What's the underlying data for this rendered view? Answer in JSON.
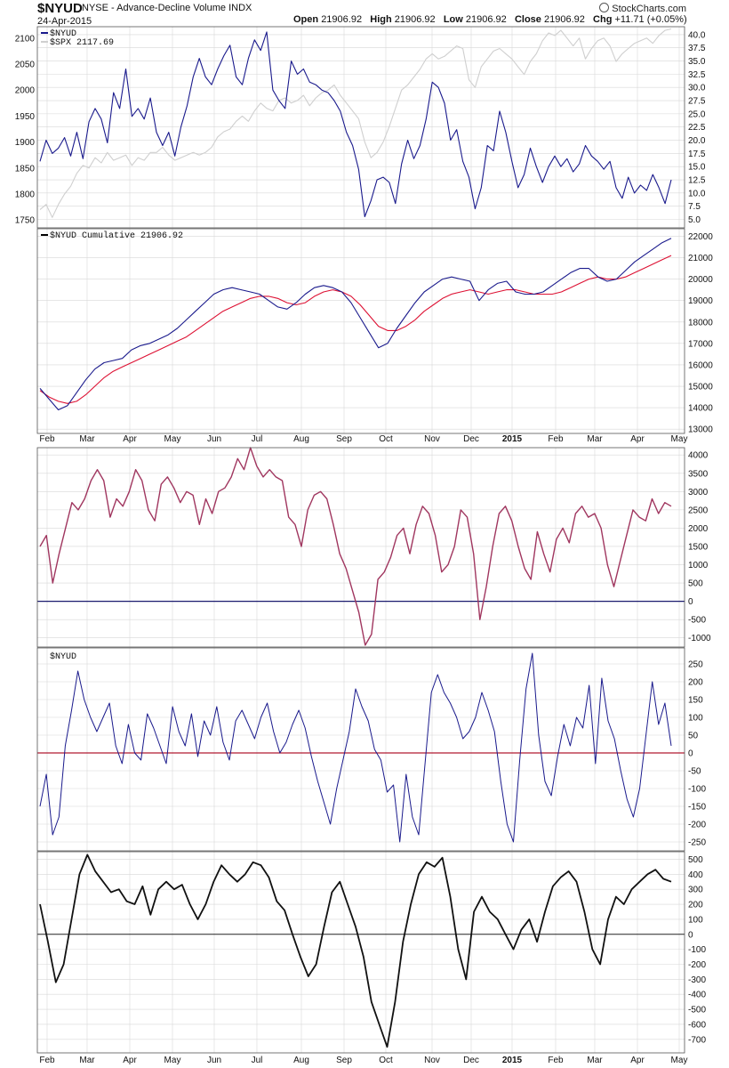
{
  "header": {
    "symbol": "$NYUD",
    "description": "NYSE - Advance-Decline Volume INDX",
    "date": "24-Apr-2015",
    "open_label": "Open",
    "open": "21906.92",
    "high_label": "High",
    "high": "21906.92",
    "low_label": "Low",
    "low": "21906.92",
    "close_label": "Close",
    "close": "21906.92",
    "chg_label": "Chg",
    "chg": "+11.71 (+0.05%)",
    "credit": "StockCharts.com"
  },
  "colors": {
    "nyud_line": "#1a1a8c",
    "spx_line": "#cfcfcf",
    "cumulative_line": "#1a1a8c",
    "cumulative_ma": "#dd1133",
    "oscillator_line": "#a0365f",
    "zero_line_dark": "#1a1a6e",
    "zero_line_red": "#b01a30",
    "momentum_line": "#111111"
  },
  "chart_data": [
    {
      "type": "line",
      "panel": "price",
      "legend": [
        "$NYUD",
        "$SPX 2117.69"
      ],
      "left_axis": {
        "ticks": [
          1750,
          1800,
          1850,
          1900,
          1950,
          2000,
          2050,
          2100
        ],
        "range": [
          1735,
          2122
        ]
      },
      "right_axis": {
        "ticks": [
          "5.0",
          "7.5",
          "10.0",
          "12.5",
          "15.0",
          "17.5",
          "20.0",
          "22.5",
          "25.0",
          "27.5",
          "30.0",
          "32.5",
          "35.0",
          "37.5",
          "40.0"
        ],
        "range": [
          3.4,
          41.5
        ]
      },
      "series": [
        {
          "name": "$NYUD",
          "axis": "right",
          "values": [
            16.0,
            20.0,
            17.5,
            18.5,
            20.5,
            17.0,
            21.5,
            16.5,
            23.5,
            26.0,
            24.0,
            19.5,
            29.0,
            26.0,
            33.5,
            24.5,
            26.0,
            24.0,
            28.0,
            21.5,
            19.0,
            21.5,
            17.0,
            22.5,
            26.5,
            32.0,
            35.5,
            32.0,
            30.5,
            33.5,
            36.0,
            38.0,
            32.0,
            30.5,
            35.5,
            39.0,
            37.0,
            40.5,
            29.5,
            27.5,
            26.0,
            35.0,
            32.5,
            33.5,
            31.0,
            30.5,
            29.5,
            29.0,
            27.5,
            25.5,
            21.5,
            19.0,
            14.5,
            5.5,
            8.5,
            12.5,
            13.0,
            12.0,
            8.0,
            15.5,
            20.0,
            16.5,
            19.0,
            24.0,
            31.0,
            30.0,
            27.0,
            20.0,
            22.0,
            16.0,
            13.0,
            7.0,
            11.0,
            19.0,
            18.0,
            25.5,
            21.5,
            16.0,
            11.0,
            13.5,
            18.5,
            15.0,
            12.0,
            15.0,
            17.0,
            15.0,
            16.5,
            14.0,
            15.5,
            19.0,
            17.0,
            16.0,
            14.5,
            16.0,
            11.0,
            9.0,
            13.0,
            10.0,
            11.5,
            10.5,
            13.5,
            11.0,
            8.0,
            12.5
          ]
        },
        {
          "name": "$SPX",
          "axis": "left",
          "values": [
            1770,
            1780,
            1755,
            1780,
            1800,
            1815,
            1840,
            1855,
            1850,
            1870,
            1860,
            1880,
            1865,
            1870,
            1875,
            1855,
            1870,
            1865,
            1880,
            1880,
            1890,
            1875,
            1865,
            1870,
            1875,
            1880,
            1875,
            1880,
            1890,
            1910,
            1920,
            1925,
            1940,
            1950,
            1940,
            1960,
            1975,
            1965,
            1960,
            1980,
            1985,
            1975,
            1980,
            1990,
            1970,
            1985,
            1995,
            2000,
            2010,
            1990,
            1975,
            1960,
            1945,
            1900,
            1870,
            1880,
            1900,
            1930,
            1965,
            2000,
            2010,
            2025,
            2040,
            2060,
            2070,
            2060,
            2065,
            2075,
            2085,
            2080,
            2020,
            2005,
            2045,
            2060,
            2075,
            2080,
            2070,
            2060,
            2045,
            2030,
            2055,
            2070,
            2095,
            2110,
            2105,
            2115,
            2100,
            2085,
            2100,
            2060,
            2080,
            2095,
            2100,
            2085,
            2055,
            2070,
            2080,
            2090,
            2095,
            2100,
            2090,
            2105,
            2115,
            2117.69
          ]
        }
      ]
    },
    {
      "type": "line",
      "panel": "cumulative",
      "legend": [
        "$NYUD Cumulative 21906.92"
      ],
      "right_axis": {
        "ticks": [
          13000,
          14000,
          15000,
          16000,
          17000,
          18000,
          19000,
          20000,
          21000,
          22000
        ],
        "range": [
          12800,
          22350
        ]
      },
      "series": [
        {
          "name": "$NYUD Cumulative",
          "values": [
            14900,
            14400,
            13900,
            14100,
            14700,
            15300,
            15800,
            16100,
            16200,
            16300,
            16700,
            16900,
            17000,
            17200,
            17400,
            17700,
            18100,
            18500,
            18900,
            19300,
            19500,
            19600,
            19500,
            19400,
            19300,
            19000,
            18700,
            18600,
            18900,
            19300,
            19600,
            19700,
            19600,
            19400,
            18900,
            18200,
            17500,
            16800,
            17000,
            17700,
            18300,
            18900,
            19400,
            19700,
            20000,
            20100,
            20000,
            19900,
            19000,
            19500,
            19800,
            19900,
            19400,
            19300,
            19300,
            19400,
            19700,
            20000,
            20300,
            20500,
            20500,
            20100,
            19900,
            20000,
            20400,
            20800,
            21100,
            21400,
            21700,
            21906.92
          ]
        },
        {
          "values": [
            14800,
            14500,
            14300,
            14200,
            14300,
            14600,
            15000,
            15400,
            15700,
            15900,
            16100,
            16300,
            16500,
            16700,
            16900,
            17100,
            17300,
            17600,
            17900,
            18200,
            18500,
            18700,
            18900,
            19100,
            19200,
            19200,
            19100,
            18900,
            18800,
            18900,
            19200,
            19400,
            19500,
            19400,
            19200,
            18800,
            18300,
            17800,
            17600,
            17600,
            17800,
            18100,
            18500,
            18800,
            19100,
            19300,
            19400,
            19500,
            19400,
            19300,
            19400,
            19500,
            19500,
            19400,
            19300,
            19300,
            19300,
            19400,
            19600,
            19800,
            20000,
            20100,
            20000,
            20000,
            20100,
            20300,
            20500,
            20700,
            20900,
            21100
          ]
        }
      ]
    },
    {
      "type": "line",
      "panel": "oscillator",
      "right_axis": {
        "ticks": [
          -1000,
          -500,
          0,
          500,
          1000,
          1500,
          2000,
          2500,
          3000,
          3500,
          4000
        ],
        "range": [
          -1250,
          4200
        ]
      },
      "series": [
        {
          "values": [
            1500,
            1800,
            500,
            1300,
            2000,
            2700,
            2500,
            2800,
            3300,
            3600,
            3300,
            2300,
            2800,
            2600,
            3000,
            3600,
            3300,
            2500,
            2200,
            3200,
            3400,
            3100,
            2700,
            3000,
            2900,
            2100,
            2800,
            2400,
            3000,
            3100,
            3400,
            3900,
            3600,
            4200,
            3700,
            3400,
            3600,
            3400,
            3300,
            2300,
            2100,
            1500,
            2500,
            2900,
            3000,
            2800,
            2100,
            1300,
            900,
            300,
            -300,
            -1200,
            -900,
            600,
            800,
            1200,
            1800,
            2000,
            1300,
            2100,
            2600,
            2400,
            1800,
            800,
            1000,
            1500,
            2500,
            2300,
            1300,
            -500,
            400,
            1500,
            2400,
            2600,
            2200,
            1500,
            900,
            600,
            1900,
            1300,
            800,
            1700,
            2000,
            1600,
            2400,
            2600,
            2300,
            2400,
            2000,
            1000,
            400,
            1100,
            1800,
            2500,
            2300,
            2200,
            2800,
            2400,
            2700,
            2600
          ]
        }
      ]
    },
    {
      "type": "line",
      "panel": "nyud",
      "legend": [
        "$NYUD"
      ],
      "right_axis": {
        "ticks": [
          -250,
          -200,
          -150,
          -100,
          -50,
          0,
          50,
          100,
          150,
          200,
          250
        ],
        "range": [
          -275,
          295
        ]
      },
      "series": [
        {
          "name": "$NYUD",
          "values": [
            -150,
            -60,
            -230,
            -180,
            20,
            120,
            230,
            150,
            100,
            60,
            100,
            140,
            20,
            -30,
            80,
            0,
            -20,
            110,
            70,
            20,
            -30,
            130,
            60,
            20,
            110,
            -10,
            90,
            50,
            130,
            30,
            -20,
            90,
            120,
            80,
            40,
            100,
            140,
            60,
            0,
            30,
            80,
            120,
            70,
            -10,
            -80,
            -140,
            -200,
            -100,
            -20,
            60,
            180,
            130,
            90,
            10,
            -20,
            -110,
            -90,
            -250,
            -60,
            -180,
            -230,
            -30,
            170,
            220,
            170,
            140,
            100,
            40,
            60,
            100,
            170,
            120,
            60,
            -80,
            -200,
            -250,
            -20,
            180,
            280,
            50,
            -80,
            -120,
            -10,
            80,
            20,
            100,
            70,
            190,
            -30,
            210,
            90,
            40,
            -50,
            -130,
            -180,
            -100,
            50,
            200,
            80,
            140,
            20
          ]
        }
      ]
    },
    {
      "type": "line",
      "panel": "momentum",
      "right_axis": {
        "ticks": [
          -700,
          -600,
          -500,
          -400,
          -300,
          -200,
          -100,
          0,
          100,
          200,
          300,
          400,
          500
        ],
        "range": [
          -790,
          550
        ]
      },
      "series": [
        {
          "values": [
            200,
            -50,
            -320,
            -200,
            100,
            400,
            530,
            420,
            350,
            280,
            300,
            220,
            200,
            320,
            130,
            300,
            350,
            300,
            330,
            200,
            100,
            200,
            350,
            460,
            400,
            350,
            400,
            480,
            460,
            380,
            220,
            160,
            0,
            -150,
            -280,
            -200,
            50,
            280,
            350,
            200,
            50,
            -150,
            -450,
            -600,
            -750,
            -450,
            -50,
            200,
            400,
            480,
            450,
            510,
            250,
            -100,
            -300,
            150,
            250,
            150,
            100,
            0,
            -100,
            30,
            100,
            -50,
            150,
            320,
            380,
            420,
            350,
            150,
            -100,
            -200,
            100,
            250,
            200,
            300,
            350,
            400,
            430,
            370,
            350
          ]
        }
      ]
    }
  ],
  "months": [
    "Feb",
    "Mar",
    "Apr",
    "May",
    "Jun",
    "Jul",
    "Aug",
    "Sep",
    "Oct",
    "Nov",
    "Dec",
    "2015",
    "Feb",
    "Mar",
    "Apr",
    "May"
  ]
}
